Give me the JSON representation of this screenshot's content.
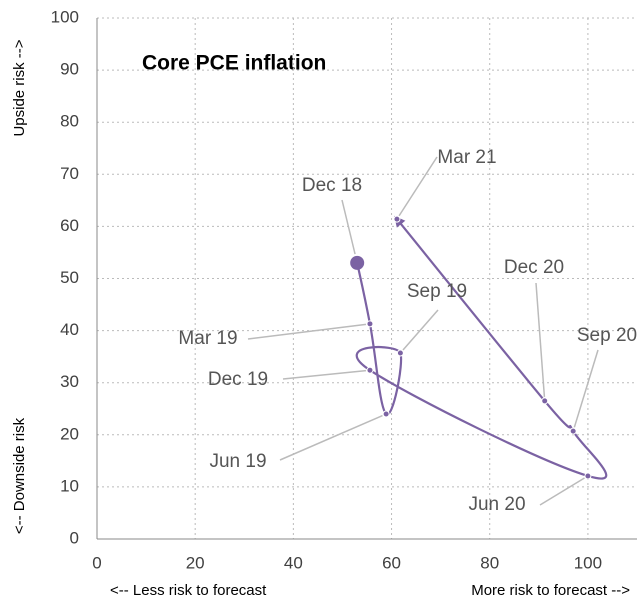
{
  "chart_data": {
    "type": "line",
    "title": "Core PCE inflation",
    "y_label_top": "Upside risk -->",
    "y_label_bottom": "<-- Downside risk",
    "x_label_left": "<-- Less risk to forecast",
    "x_label_right": "More risk to forecast -->",
    "color": "#7b62a3",
    "point_labels": [
      "Dec 18",
      "Mar 19",
      "Jun 19",
      "Sep 19",
      "Dec 19",
      "Jun 20",
      "Sep 20",
      "Dec 20",
      "Mar 21"
    ],
    "x": [
      53,
      55.6,
      58.9,
      61.8,
      55.6,
      100,
      97,
      91.2,
      61.1
    ],
    "values": [
      53,
      41.3,
      24,
      35.7,
      32.4,
      12.1,
      20.7,
      26.5,
      61.4
    ],
    "xlim": [
      0,
      110
    ],
    "ylim": [
      0,
      100
    ],
    "xticks": [
      0,
      20,
      40,
      60,
      80,
      100
    ],
    "yticks": [
      0,
      10,
      20,
      30,
      40,
      50,
      60,
      70,
      80,
      90,
      100
    ],
    "grid": true
  }
}
